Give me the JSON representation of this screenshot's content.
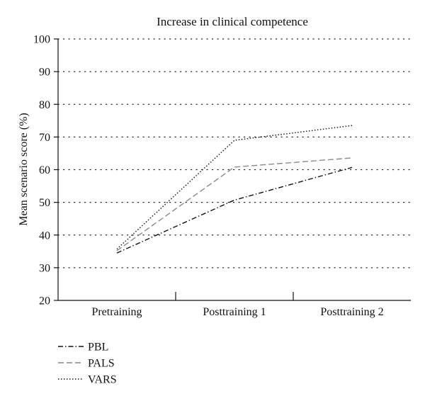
{
  "chart_data": {
    "type": "line",
    "title": "Increase in clinical competence",
    "xlabel": "",
    "ylabel": "Mean scenario score (%)",
    "categories": [
      "Pretraining",
      "Posttraining 1",
      "Posttraining 2"
    ],
    "ylim": [
      20,
      100
    ],
    "yticks": [
      20,
      30,
      40,
      50,
      60,
      70,
      80,
      90,
      100
    ],
    "grid": "horizontal dotted",
    "legend_position": "bottom-left",
    "series": [
      {
        "name": "PBL",
        "values": [
          34.5,
          50.7,
          60.7
        ],
        "color": "#111111",
        "dash": "dash-dot"
      },
      {
        "name": "PALS",
        "values": [
          35.2,
          60.8,
          63.6
        ],
        "color": "#8a8a8a",
        "dash": "dashed"
      },
      {
        "name": "VARS",
        "values": [
          35.7,
          69.0,
          73.5
        ],
        "color": "#111111",
        "dash": "dotted"
      }
    ]
  }
}
